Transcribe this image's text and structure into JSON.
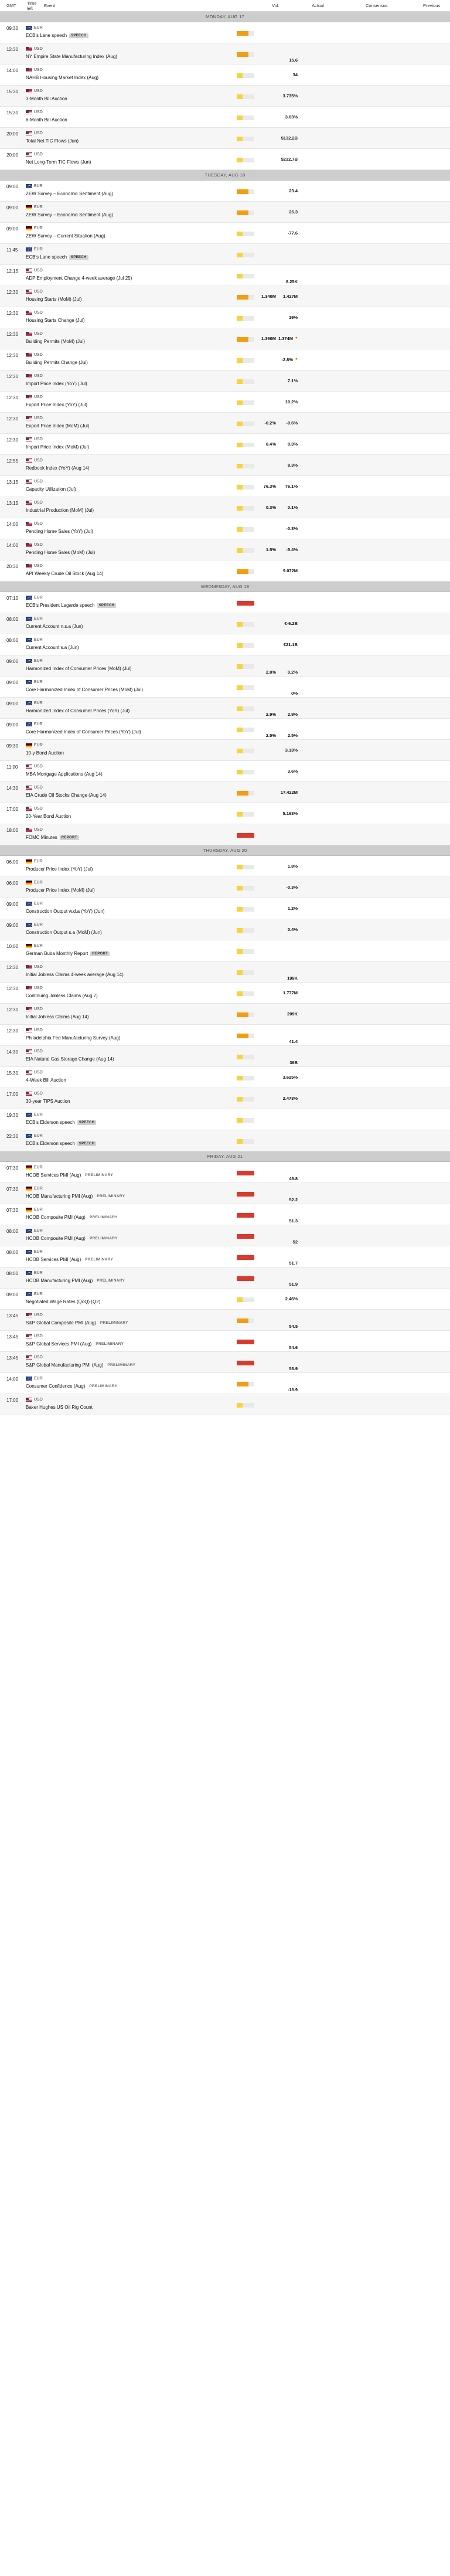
{
  "header": {
    "gmt": "GMT",
    "time_left": "Time left",
    "event": "Event",
    "vol": "Vol.",
    "actual": "Actual",
    "consensus": "Consensus",
    "previous": "Previous"
  },
  "days": [
    {
      "label": "MONDAY, AUG 17",
      "events": [
        {
          "time": "09:30",
          "ccy": "EUR",
          "flag": "EU",
          "name": "ECB's Lane speech",
          "badge": "SPEECH",
          "vol": "med",
          "consensus": "",
          "previous": ""
        },
        {
          "time": "12:30",
          "ccy": "USD",
          "flag": "US",
          "name": "NY Empire State Manufacturing Index (Aug)",
          "badge": "",
          "vol": "med",
          "consensus": "",
          "previous": "15.6"
        },
        {
          "time": "14:00",
          "ccy": "USD",
          "flag": "US",
          "name": "NAHB Housing Market Index (Aug)",
          "badge": "",
          "vol": "low",
          "consensus": "",
          "previous": "34"
        },
        {
          "time": "15:30",
          "ccy": "USD",
          "flag": "US",
          "name": "3-Month Bill Auction",
          "badge": "",
          "vol": "low",
          "consensus": "",
          "previous": "3.735%"
        },
        {
          "time": "15:30",
          "ccy": "USD",
          "flag": "US",
          "name": "6-Month Bill Auction",
          "badge": "",
          "vol": "low",
          "consensus": "",
          "previous": "3.63%"
        },
        {
          "time": "20:00",
          "ccy": "USD",
          "flag": "US",
          "name": "Total Net TIC Flows (Jun)",
          "badge": "",
          "vol": "low",
          "consensus": "",
          "previous": "$132.2B"
        },
        {
          "time": "20:00",
          "ccy": "USD",
          "flag": "US",
          "name": "Net Long-Term TIC Flows (Jun)",
          "badge": "",
          "vol": "low",
          "consensus": "",
          "previous": "$232.7B"
        }
      ]
    },
    {
      "label": "TUESDAY, AUG 18",
      "events": [
        {
          "time": "09:00",
          "ccy": "EUR",
          "flag": "EU",
          "name": "ZEW Survey – Economic Sentiment (Aug)",
          "badge": "",
          "vol": "med",
          "consensus": "",
          "previous": "23.4"
        },
        {
          "time": "09:00",
          "ccy": "EUR",
          "flag": "DE",
          "name": "ZEW Survey – Economic Sentiment (Aug)",
          "badge": "",
          "vol": "med",
          "consensus": "",
          "previous": "26.3"
        },
        {
          "time": "09:00",
          "ccy": "EUR",
          "flag": "DE",
          "name": "ZEW Survey – Current Situation (Aug)",
          "badge": "",
          "vol": "low",
          "consensus": "",
          "previous": "-77.6"
        },
        {
          "time": "11:45",
          "ccy": "EUR",
          "flag": "EU",
          "name": "ECB's Lane speech",
          "badge": "SPEECH",
          "vol": "low",
          "consensus": "",
          "previous": ""
        },
        {
          "time": "12:15",
          "ccy": "USD",
          "flag": "US",
          "name": "ADP Employment Change 4-week average (Jul 25)",
          "badge": "",
          "vol": "low",
          "consensus": "",
          "previous": "8.25K"
        },
        {
          "time": "12:30",
          "ccy": "USD",
          "flag": "US",
          "name": "Housing Starts (MoM) (Jul)",
          "badge": "",
          "vol": "med",
          "consensus": "1.340M",
          "previous": "1.427M"
        },
        {
          "time": "12:30",
          "ccy": "USD",
          "flag": "US",
          "name": "Housing Starts Change (Jul)",
          "badge": "",
          "vol": "low",
          "consensus": "",
          "previous": "19%"
        },
        {
          "time": "12:30",
          "ccy": "USD",
          "flag": "US",
          "name": "Building Permits (MoM) (Jul)",
          "badge": "",
          "vol": "med",
          "consensus": "1.390M",
          "previous": "1.374M",
          "revised": true
        },
        {
          "time": "12:30",
          "ccy": "USD",
          "flag": "US",
          "name": "Building Permits Change (Jul)",
          "badge": "",
          "vol": "low",
          "consensus": "",
          "previous": "-2.8%",
          "revised": true
        },
        {
          "time": "12:30",
          "ccy": "USD",
          "flag": "US",
          "name": "Import Price Index (YoY) (Jul)",
          "badge": "",
          "vol": "low",
          "consensus": "",
          "previous": "7.1%"
        },
        {
          "time": "12:30",
          "ccy": "USD",
          "flag": "US",
          "name": "Export Price Index (YoY) (Jul)",
          "badge": "",
          "vol": "low",
          "consensus": "",
          "previous": "10.2%"
        },
        {
          "time": "12:30",
          "ccy": "USD",
          "flag": "US",
          "name": "Export Price Index (MoM) (Jul)",
          "badge": "",
          "vol": "low",
          "consensus": "-0.2%",
          "previous": "-0.6%"
        },
        {
          "time": "12:30",
          "ccy": "USD",
          "flag": "US",
          "name": "Import Price Index (MoM) (Jul)",
          "badge": "",
          "vol": "low",
          "consensus": "0.4%",
          "previous": "0.3%"
        },
        {
          "time": "12:55",
          "ccy": "USD",
          "flag": "US",
          "name": "Redbook Index (YoY) (Aug 14)",
          "badge": "",
          "vol": "low",
          "consensus": "",
          "previous": "8.3%"
        },
        {
          "time": "13:15",
          "ccy": "USD",
          "flag": "US",
          "name": "Capacity Utilization (Jul)",
          "badge": "",
          "vol": "low",
          "consensus": "76.3%",
          "previous": "76.1%"
        },
        {
          "time": "13:15",
          "ccy": "USD",
          "flag": "US",
          "name": "Industrial Production (MoM) (Jul)",
          "badge": "",
          "vol": "low",
          "consensus": "0.3%",
          "previous": "0.1%"
        },
        {
          "time": "14:00",
          "ccy": "USD",
          "flag": "US",
          "name": "Pending Home Sales (YoY) (Jul)",
          "badge": "",
          "vol": "low",
          "consensus": "",
          "previous": "-0.3%"
        },
        {
          "time": "14:00",
          "ccy": "USD",
          "flag": "US",
          "name": "Pending Home Sales (MoM) (Jul)",
          "badge": "",
          "vol": "low",
          "consensus": "1.5%",
          "previous": "-5.4%"
        },
        {
          "time": "20:30",
          "ccy": "USD",
          "flag": "US",
          "name": "API Weekly Crude Oil Stock (Aug 14)",
          "badge": "",
          "vol": "med",
          "consensus": "",
          "previous": "9.072M"
        }
      ]
    },
    {
      "label": "WEDNESDAY, AUG 19",
      "events": [
        {
          "time": "07:10",
          "ccy": "EUR",
          "flag": "EU",
          "name": "ECB's President Lagarde speech",
          "badge": "SPEECH",
          "vol": "high",
          "consensus": "",
          "previous": ""
        },
        {
          "time": "08:00",
          "ccy": "EUR",
          "flag": "EU",
          "name": "Current Account n.s.a (Jun)",
          "badge": "",
          "vol": "low",
          "consensus": "",
          "previous": "€-6.2B"
        },
        {
          "time": "08:00",
          "ccy": "EUR",
          "flag": "EU",
          "name": "Current Account s.a (Jun)",
          "badge": "",
          "vol": "low",
          "consensus": "",
          "previous": "€21.1B"
        },
        {
          "time": "09:00",
          "ccy": "EUR",
          "flag": "EU",
          "name": "Harmonized Index of Consumer Prices (MoM) (Jul)",
          "badge": "",
          "vol": "low",
          "consensus": "2.8%",
          "previous": "0.2%"
        },
        {
          "time": "09:00",
          "ccy": "EUR",
          "flag": "EU",
          "name": "Core Harmonized Index of Consumer Prices (MoM) (Jul)",
          "badge": "",
          "vol": "low",
          "consensus": "",
          "previous": "0%"
        },
        {
          "time": "09:00",
          "ccy": "EUR",
          "flag": "EU",
          "name": "Harmonized Index of Consumer Prices (YoY) (Jul)",
          "badge": "",
          "vol": "low",
          "consensus": "2.9%",
          "previous": "2.9%"
        },
        {
          "time": "09:00",
          "ccy": "EUR",
          "flag": "EU",
          "name": "Core Harmonized Index of Consumer Prices (YoY) (Jul)",
          "badge": "",
          "vol": "low",
          "consensus": "2.5%",
          "previous": "2.5%"
        },
        {
          "time": "09:30",
          "ccy": "EUR",
          "flag": "DE",
          "name": "10-y Bond Auction",
          "badge": "",
          "vol": "low",
          "consensus": "",
          "previous": "3.13%"
        },
        {
          "time": "11:00",
          "ccy": "USD",
          "flag": "US",
          "name": "MBA Mortgage Applications (Aug 14)",
          "badge": "",
          "vol": "low",
          "consensus": "",
          "previous": "3.6%"
        },
        {
          "time": "14:30",
          "ccy": "USD",
          "flag": "US",
          "name": "EIA Crude Oil Stocks Change (Aug 14)",
          "badge": "",
          "vol": "med",
          "consensus": "",
          "previous": "17.422M"
        },
        {
          "time": "17:00",
          "ccy": "USD",
          "flag": "US",
          "name": "20-Year Bond Auction",
          "badge": "",
          "vol": "low",
          "consensus": "",
          "previous": "5.163%"
        },
        {
          "time": "18:00",
          "ccy": "USD",
          "flag": "US",
          "name": "FOMC Minutes",
          "badge": "REPORT",
          "vol": "high",
          "consensus": "",
          "previous": ""
        }
      ]
    },
    {
      "label": "THURSDAY, AUG 20",
      "events": [
        {
          "time": "06:00",
          "ccy": "EUR",
          "flag": "DE",
          "name": "Producer Price Index (YoY) (Jul)",
          "badge": "",
          "vol": "low",
          "consensus": "",
          "previous": "1.8%"
        },
        {
          "time": "06:00",
          "ccy": "EUR",
          "flag": "DE",
          "name": "Producer Price Index (MoM) (Jul)",
          "badge": "",
          "vol": "low",
          "consensus": "",
          "previous": "-0.3%"
        },
        {
          "time": "09:00",
          "ccy": "EUR",
          "flag": "EU",
          "name": "Construction Output w.d.a (YoY) (Jun)",
          "badge": "",
          "vol": "low",
          "consensus": "",
          "previous": "1.2%"
        },
        {
          "time": "09:00",
          "ccy": "EUR",
          "flag": "EU",
          "name": "Construction Output s.a (MoM) (Jun)",
          "badge": "",
          "vol": "low",
          "consensus": "",
          "previous": "0.4%"
        },
        {
          "time": "10:00",
          "ccy": "EUR",
          "flag": "DE",
          "name": "German Buba Monthly Report",
          "badge": "REPORT",
          "vol": "low",
          "consensus": "",
          "previous": ""
        },
        {
          "time": "12:30",
          "ccy": "USD",
          "flag": "US",
          "name": "Initial Jobless Claims 4-week average (Aug 14)",
          "badge": "",
          "vol": "low",
          "consensus": "",
          "previous": "199K"
        },
        {
          "time": "12:30",
          "ccy": "USD",
          "flag": "US",
          "name": "Continuing Jobless Claims (Aug 7)",
          "badge": "",
          "vol": "low",
          "consensus": "",
          "previous": "1.777M"
        },
        {
          "time": "12:30",
          "ccy": "USD",
          "flag": "US",
          "name": "Initial Jobless Claims (Aug 14)",
          "badge": "",
          "vol": "med",
          "consensus": "",
          "previous": "209K"
        },
        {
          "time": "12:30",
          "ccy": "USD",
          "flag": "US",
          "name": "Philadelphia Fed Manufacturing Survey (Aug)",
          "badge": "",
          "vol": "med",
          "consensus": "",
          "previous": "41.4"
        },
        {
          "time": "14:30",
          "ccy": "USD",
          "flag": "US",
          "name": "EIA Natural Gas Storage Change (Aug 14)",
          "badge": "",
          "vol": "low",
          "consensus": "",
          "previous": "36B"
        },
        {
          "time": "15:30",
          "ccy": "USD",
          "flag": "US",
          "name": "4-Week Bill Auction",
          "badge": "",
          "vol": "low",
          "consensus": "",
          "previous": "3.625%"
        },
        {
          "time": "17:00",
          "ccy": "USD",
          "flag": "US",
          "name": "30-year TIPS Auction",
          "badge": "",
          "vol": "low",
          "consensus": "",
          "previous": "2.473%"
        },
        {
          "time": "19:30",
          "ccy": "EUR",
          "flag": "EU",
          "name": "ECB's Elderson speech",
          "badge": "SPEECH",
          "vol": "low",
          "consensus": "",
          "previous": ""
        },
        {
          "time": "22:30",
          "ccy": "EUR",
          "flag": "EU",
          "name": "ECB's Elderson speech",
          "badge": "SPEECH",
          "vol": "low",
          "consensus": "",
          "previous": ""
        }
      ]
    },
    {
      "label": "FRIDAY, AUG 21",
      "events": [
        {
          "time": "07:30",
          "ccy": "EUR",
          "flag": "DE",
          "name": "HCOB Services PMI (Aug)",
          "badge": "PRELIMINARY",
          "vol": "high",
          "consensus": "",
          "previous": "49.8"
        },
        {
          "time": "07:30",
          "ccy": "EUR",
          "flag": "DE",
          "name": "HCOB Manufacturing PMI (Aug)",
          "badge": "PRELIMINARY",
          "vol": "high",
          "consensus": "",
          "previous": "52.2"
        },
        {
          "time": "07:30",
          "ccy": "EUR",
          "flag": "DE",
          "name": "HCOB Composite PMI (Aug)",
          "badge": "PRELIMINARY",
          "vol": "high",
          "consensus": "",
          "previous": "51.3"
        },
        {
          "time": "08:00",
          "ccy": "EUR",
          "flag": "EU",
          "name": "HCOB Composite PMI (Aug)",
          "badge": "PRELIMINARY",
          "vol": "high",
          "consensus": "",
          "previous": "52"
        },
        {
          "time": "08:00",
          "ccy": "EUR",
          "flag": "EU",
          "name": "HCOB Services PMI (Aug)",
          "badge": "PRELIMINARY",
          "vol": "high",
          "consensus": "",
          "previous": "51.7"
        },
        {
          "time": "08:00",
          "ccy": "EUR",
          "flag": "EU",
          "name": "HCOB Manufacturing PMI (Aug)",
          "badge": "PRELIMINARY",
          "vol": "high",
          "consensus": "",
          "previous": "51.9"
        },
        {
          "time": "09:00",
          "ccy": "EUR",
          "flag": "EU",
          "name": "Negotiated Wage Rates (QoQ) (Q2)",
          "badge": "",
          "vol": "low",
          "consensus": "",
          "previous": "2.46%"
        },
        {
          "time": "13:45",
          "ccy": "USD",
          "flag": "US",
          "name": "S&P Global Composite PMI (Aug)",
          "badge": "PRELIMINARY",
          "vol": "med",
          "consensus": "",
          "previous": "54.5"
        },
        {
          "time": "13:45",
          "ccy": "USD",
          "flag": "US",
          "name": "S&P Global Services PMI (Aug)",
          "badge": "PRELIMINARY",
          "vol": "high",
          "consensus": "",
          "previous": "54.6"
        },
        {
          "time": "13:45",
          "ccy": "USD",
          "flag": "US",
          "name": "S&P Global Manufacturing PMI (Aug)",
          "badge": "PRELIMINARY",
          "vol": "high",
          "consensus": "",
          "previous": "53.9"
        },
        {
          "time": "14:00",
          "ccy": "EUR",
          "flag": "EU",
          "name": "Consumer Confidence (Aug)",
          "badge": "PRELIMINARY",
          "vol": "med",
          "consensus": "",
          "previous": "-15.9"
        },
        {
          "time": "17:00",
          "ccy": "USD",
          "flag": "US",
          "name": "Baker Hughes US Oil Rig Count",
          "badge": "",
          "vol": "low",
          "consensus": "",
          "previous": ""
        }
      ]
    }
  ]
}
